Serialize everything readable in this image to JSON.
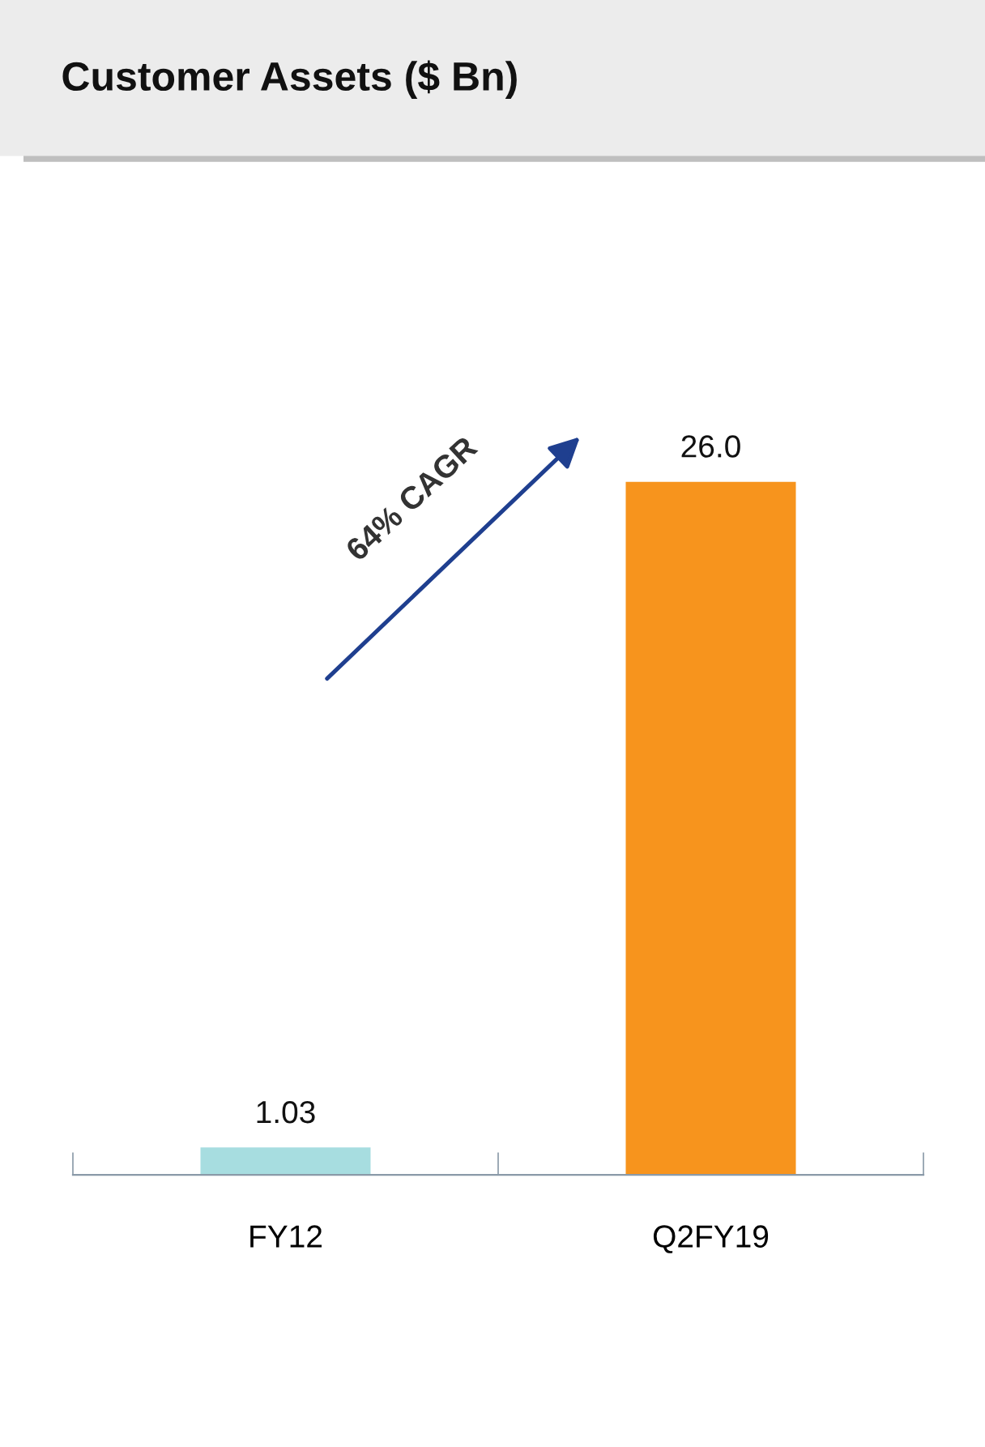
{
  "chart_data": {
    "type": "bar",
    "title": "Customer Assets ($ Bn)",
    "categories": [
      "FY12",
      "Q2FY19"
    ],
    "values": [
      1.03,
      26.0
    ],
    "value_labels": [
      "1.03",
      "26.0"
    ],
    "colors": [
      "#a7dde0",
      "#f7941d"
    ],
    "tick_labels": "x",
    "grid": false,
    "legend": false,
    "annotations": [
      "64% CAGR"
    ]
  }
}
